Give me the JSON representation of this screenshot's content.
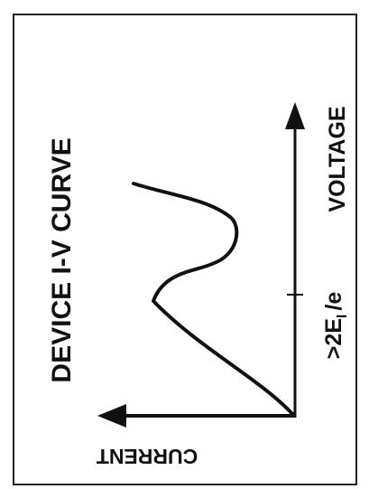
{
  "figure": {
    "title": "DEVICE I-V CURVE",
    "current_axis_label": "CURRENT",
    "voltage_axis_label": "VOLTAGE",
    "threshold_tick_label": ">2E",
    "threshold_subscript": "I",
    "threshold_suffix": "/e",
    "ink_color": "#111111",
    "background_color": "#ffffff"
  }
}
